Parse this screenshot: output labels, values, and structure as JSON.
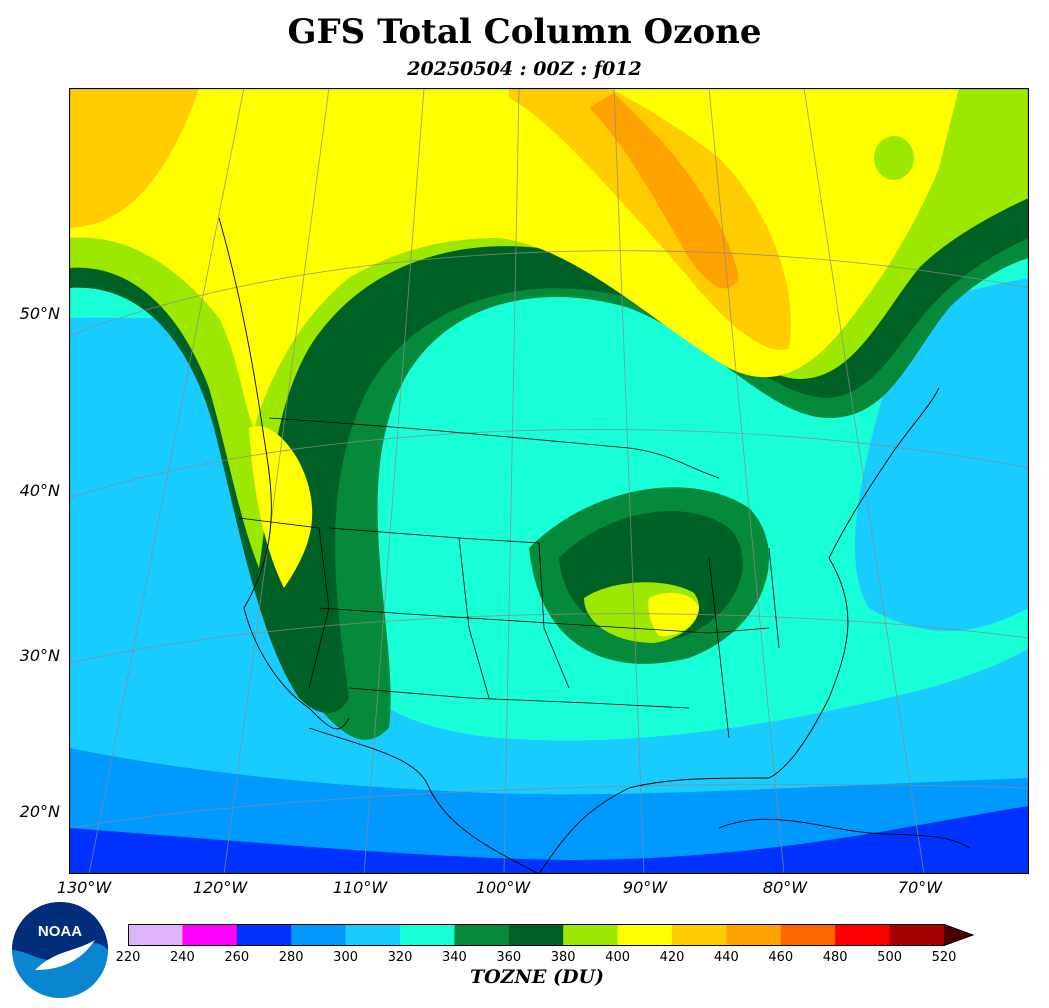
{
  "title": "GFS Total Column Ozone",
  "subtitle": "20250504 : 00Z : f012",
  "latitude_labels": [
    "50°N",
    "40°N",
    "30°N",
    "20°N"
  ],
  "longitude_labels": [
    "130°W",
    "120°W",
    "110°W",
    "100°W",
    "90°W",
    "80°W",
    "70°W"
  ],
  "colorbar": {
    "label": "TOZNE (DU)",
    "ticks": [
      "220",
      "240",
      "260",
      "280",
      "300",
      "320",
      "340",
      "360",
      "380",
      "400",
      "420",
      "440",
      "460",
      "480",
      "500",
      "520"
    ],
    "colors": [
      "#e0b4fa",
      "#ff00ff",
      "#0033ff",
      "#0099ff",
      "#18ccff",
      "#18ffd8",
      "#048a3a",
      "#006126",
      "#9ce800",
      "#ffff00",
      "#ffcc00",
      "#ffa200",
      "#ff6600",
      "#ff0000",
      "#a60000"
    ],
    "extend_color": "#4a0000"
  },
  "logo": {
    "text": "NOAA"
  }
}
